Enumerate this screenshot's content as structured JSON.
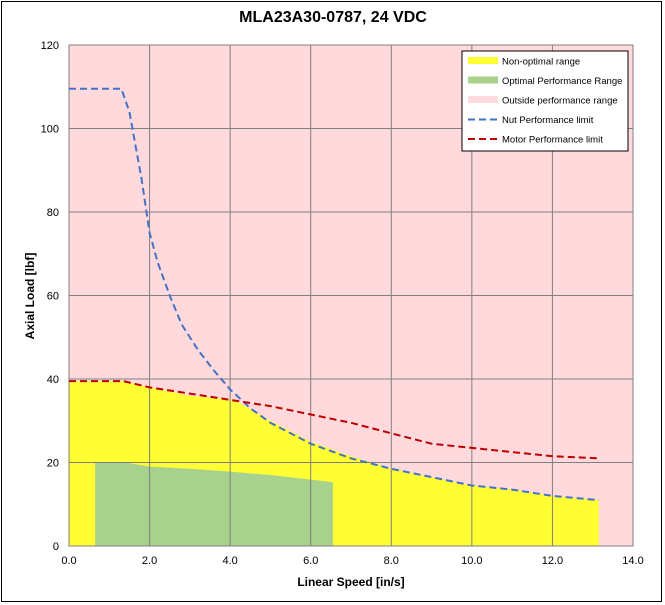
{
  "chart_data": {
    "type": "area",
    "title": "MLA23A30-0787, 24 VDC",
    "xlabel": "Linear Speed [in/s]",
    "ylabel": "Axial Load [lbf]",
    "xlim": [
      0,
      14
    ],
    "ylim": [
      0,
      120
    ],
    "xticks": [
      "0.0",
      "2.0",
      "4.0",
      "6.0",
      "8.0",
      "10.0",
      "12.0",
      "14.0"
    ],
    "yticks": [
      "0",
      "20",
      "40",
      "60",
      "80",
      "100",
      "120"
    ],
    "grid": true,
    "legend_position": "top-right",
    "background_series": {
      "name": "Outside performance range",
      "color": "#ffd9dc"
    },
    "series": [
      {
        "name": "Non-optimal range",
        "kind": "area",
        "color": "#ffff33",
        "x": [
          0,
          1.35,
          2.0,
          3.0,
          4.1,
          5.0,
          6.0,
          7.0,
          8.0,
          9.0,
          10.0,
          11.0,
          12.0,
          13.15
        ],
        "y": [
          39.5,
          39.5,
          38.0,
          36.0,
          35.0,
          30.0,
          25.0,
          21.5,
          18.5,
          16.5,
          14.5,
          13.5,
          12.0,
          11.0
        ]
      },
      {
        "name": "Optimal Performance Range",
        "kind": "area",
        "color": "#a9d18e",
        "x": [
          0.65,
          1.4,
          2.0,
          3.0,
          4.0,
          5.0,
          6.55
        ],
        "y": [
          20.0,
          20.0,
          19.0,
          18.5,
          17.8,
          17.0,
          15.3
        ],
        "x_end": 6.55
      },
      {
        "name": "Nut Performance limit",
        "kind": "line",
        "dash": "dashed",
        "color": "#4472c4",
        "x": [
          0,
          1.3,
          1.5,
          1.8,
          2.0,
          2.2,
          2.5,
          2.8,
          3.2,
          3.6,
          4.0,
          4.5,
          5.0,
          5.5,
          6.0,
          7.0,
          8.0,
          9.0,
          10.0,
          11.0,
          12.0,
          13.15
        ],
        "y": [
          109.5,
          109.5,
          104,
          88,
          75,
          68,
          60,
          53,
          47,
          42,
          37.5,
          33,
          29.5,
          27,
          24.5,
          21,
          18.5,
          16.5,
          14.5,
          13.5,
          12.0,
          11.0
        ]
      },
      {
        "name": "Motor Performance limit",
        "kind": "line",
        "dash": "dashed",
        "color": "#c00000",
        "x": [
          0,
          1.35,
          2.0,
          3.0,
          4.0,
          5.0,
          6.0,
          7.0,
          8.0,
          9.0,
          10.0,
          11.0,
          12.0,
          13.15
        ],
        "y": [
          39.5,
          39.5,
          38.0,
          36.5,
          35.0,
          33.5,
          31.5,
          29.5,
          27.0,
          24.5,
          23.5,
          22.5,
          21.5,
          21.0
        ]
      }
    ]
  }
}
